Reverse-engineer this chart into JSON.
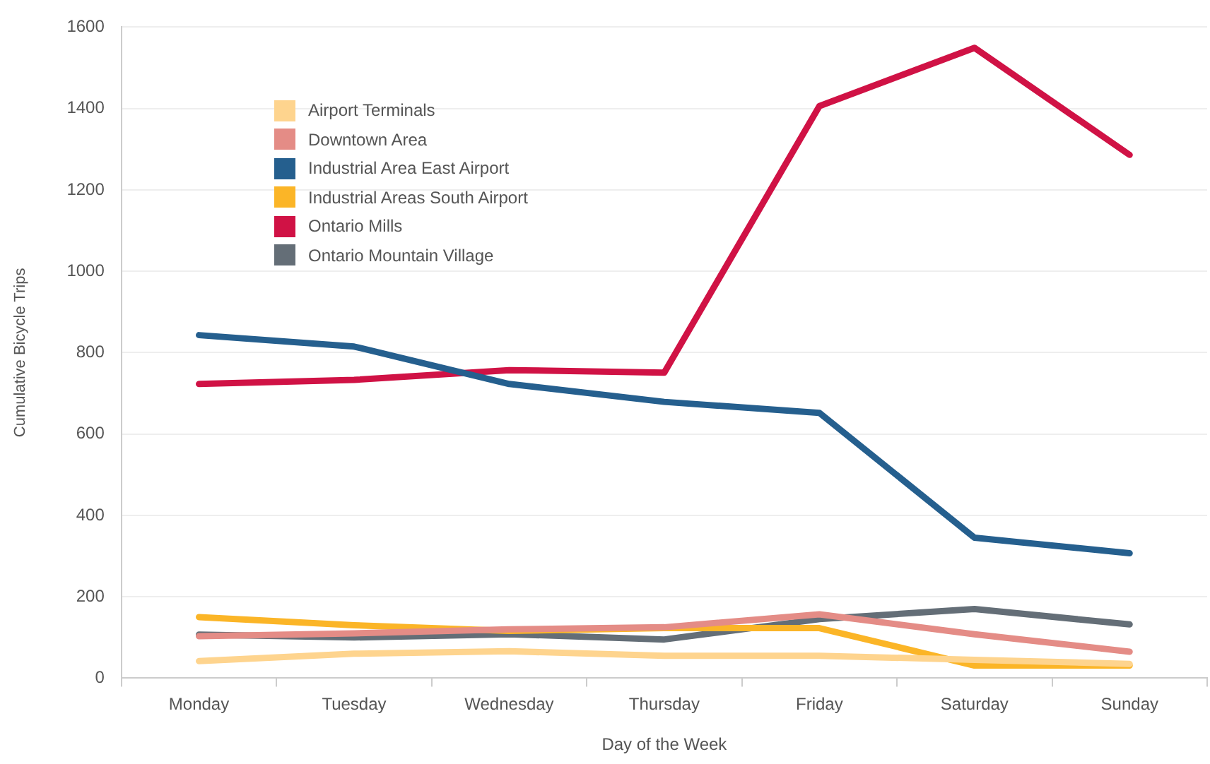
{
  "chart_data": {
    "type": "line",
    "xlabel": "Day of the Week",
    "ylabel": "Cumulative Bicycle Trips",
    "categories": [
      "Monday",
      "Tuesday",
      "Wednesday",
      "Thursday",
      "Friday",
      "Saturday",
      "Sunday"
    ],
    "series": [
      {
        "name": "Airport Terminals",
        "color": "#fed48e",
        "values": [
          42,
          60,
          66,
          55,
          55,
          45,
          35
        ]
      },
      {
        "name": "Downtown Area",
        "color": "#e48c86",
        "values": [
          103,
          110,
          120,
          125,
          157,
          108,
          65
        ]
      },
      {
        "name": "Industrial Area East Airport",
        "color": "#255f8e",
        "values": [
          843,
          815,
          723,
          679,
          652,
          345,
          307
        ]
      },
      {
        "name": "Industrial Areas South Airport",
        "color": "#fbb527",
        "values": [
          150,
          130,
          116,
          123,
          123,
          31,
          31
        ]
      },
      {
        "name": "Ontario Mills",
        "color": "#d01245",
        "values": [
          723,
          733,
          757,
          751,
          1406,
          1549,
          1286
        ]
      },
      {
        "name": "Ontario Mountain Village",
        "color": "#646e77",
        "values": [
          107,
          100,
          108,
          95,
          145,
          170,
          132
        ]
      }
    ],
    "ylim": [
      0,
      1600
    ],
    "yticks": [
      0,
      200,
      400,
      600,
      800,
      1000,
      1200,
      1400,
      1600
    ],
    "grid": "y",
    "legend": "top left",
    "marker": "none",
    "line_style": "solid"
  }
}
